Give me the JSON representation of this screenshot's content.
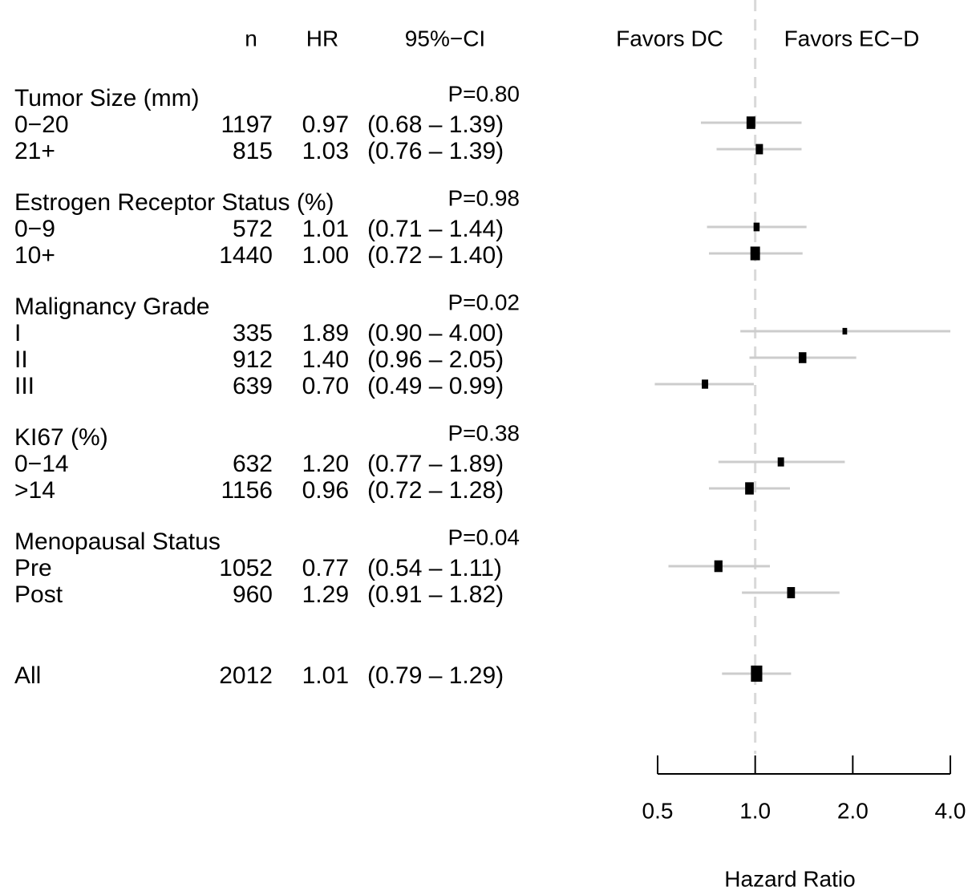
{
  "chart_data": {
    "type": "forest",
    "headers": {
      "n": "n",
      "hr": "HR",
      "ci": "95%−CI"
    },
    "favors_left": "Favors DC",
    "favors_right": "Favors EC−D",
    "xlabel": "Hazard Ratio",
    "log_scale": true,
    "xlim": [
      0.5,
      4
    ],
    "xticks": [
      0.5,
      {
        "value": 1,
        "label": "1.0"
      },
      {
        "value": 2,
        "label": "2.0"
      },
      {
        "value": 4,
        "label": "4.0"
      }
    ],
    "reference_line": 1,
    "marker_color": "#000000",
    "ci_color": "#cccccc",
    "groups": [
      {
        "title": "Tumor Size (mm)",
        "p_label": "P=0.80",
        "rows": [
          {
            "label": "0−20",
            "n": 1197,
            "hr": 0.97,
            "hr_label": "0.97",
            "lo": 0.68,
            "hi": 1.39,
            "ci_label": "(0.68 – 1.39)"
          },
          {
            "label": "21+",
            "n": 815,
            "hr": 1.03,
            "hr_label": "1.03",
            "lo": 0.76,
            "hi": 1.39,
            "ci_label": "(0.76 – 1.39)"
          }
        ]
      },
      {
        "title": "Estrogen Receptor Status (%)",
        "p_label": "P=0.98",
        "rows": [
          {
            "label": "0−9",
            "n": 572,
            "hr": 1.01,
            "hr_label": "1.01",
            "lo": 0.71,
            "hi": 1.44,
            "ci_label": "(0.71 – 1.44)"
          },
          {
            "label": "10+",
            "n": 1440,
            "hr": 1.0,
            "hr_label": "1.00",
            "lo": 0.72,
            "hi": 1.4,
            "ci_label": "(0.72 – 1.40)"
          }
        ]
      },
      {
        "title": "Malignancy Grade",
        "p_label": "P=0.02",
        "rows": [
          {
            "label": "I",
            "n": 335,
            "hr": 1.89,
            "hr_label": "1.89",
            "lo": 0.9,
            "hi": 4.0,
            "ci_label": "(0.90 – 4.00)"
          },
          {
            "label": "II",
            "n": 912,
            "hr": 1.4,
            "hr_label": "1.40",
            "lo": 0.96,
            "hi": 2.05,
            "ci_label": "(0.96 – 2.05)"
          },
          {
            "label": "III",
            "n": 639,
            "hr": 0.7,
            "hr_label": "0.70",
            "lo": 0.49,
            "hi": 0.99,
            "ci_label": "(0.49 – 0.99)"
          }
        ]
      },
      {
        "title": "KI67 (%)",
        "p_label": "P=0.38",
        "rows": [
          {
            "label": "0−14",
            "n": 632,
            "hr": 1.2,
            "hr_label": "1.20",
            "lo": 0.77,
            "hi": 1.89,
            "ci_label": "(0.77 – 1.89)"
          },
          {
            "label": ">14",
            "n": 1156,
            "hr": 0.96,
            "hr_label": "0.96",
            "lo": 0.72,
            "hi": 1.28,
            "ci_label": "(0.72 – 1.28)"
          }
        ]
      },
      {
        "title": "Menopausal Status",
        "p_label": "P=0.04",
        "rows": [
          {
            "label": "Pre",
            "n": 1052,
            "hr": 0.77,
            "hr_label": "0.77",
            "lo": 0.54,
            "hi": 1.11,
            "ci_label": "(0.54 – 1.11)"
          },
          {
            "label": "Post",
            "n": 960,
            "hr": 1.29,
            "hr_label": "1.29",
            "lo": 0.91,
            "hi": 1.82,
            "ci_label": "(0.91 – 1.82)"
          }
        ]
      }
    ],
    "overall": {
      "label": "All",
      "n": 2012,
      "hr": 1.01,
      "hr_label": "1.01",
      "lo": 0.79,
      "hi": 1.29,
      "ci_label": "(0.79 – 1.29)"
    }
  }
}
